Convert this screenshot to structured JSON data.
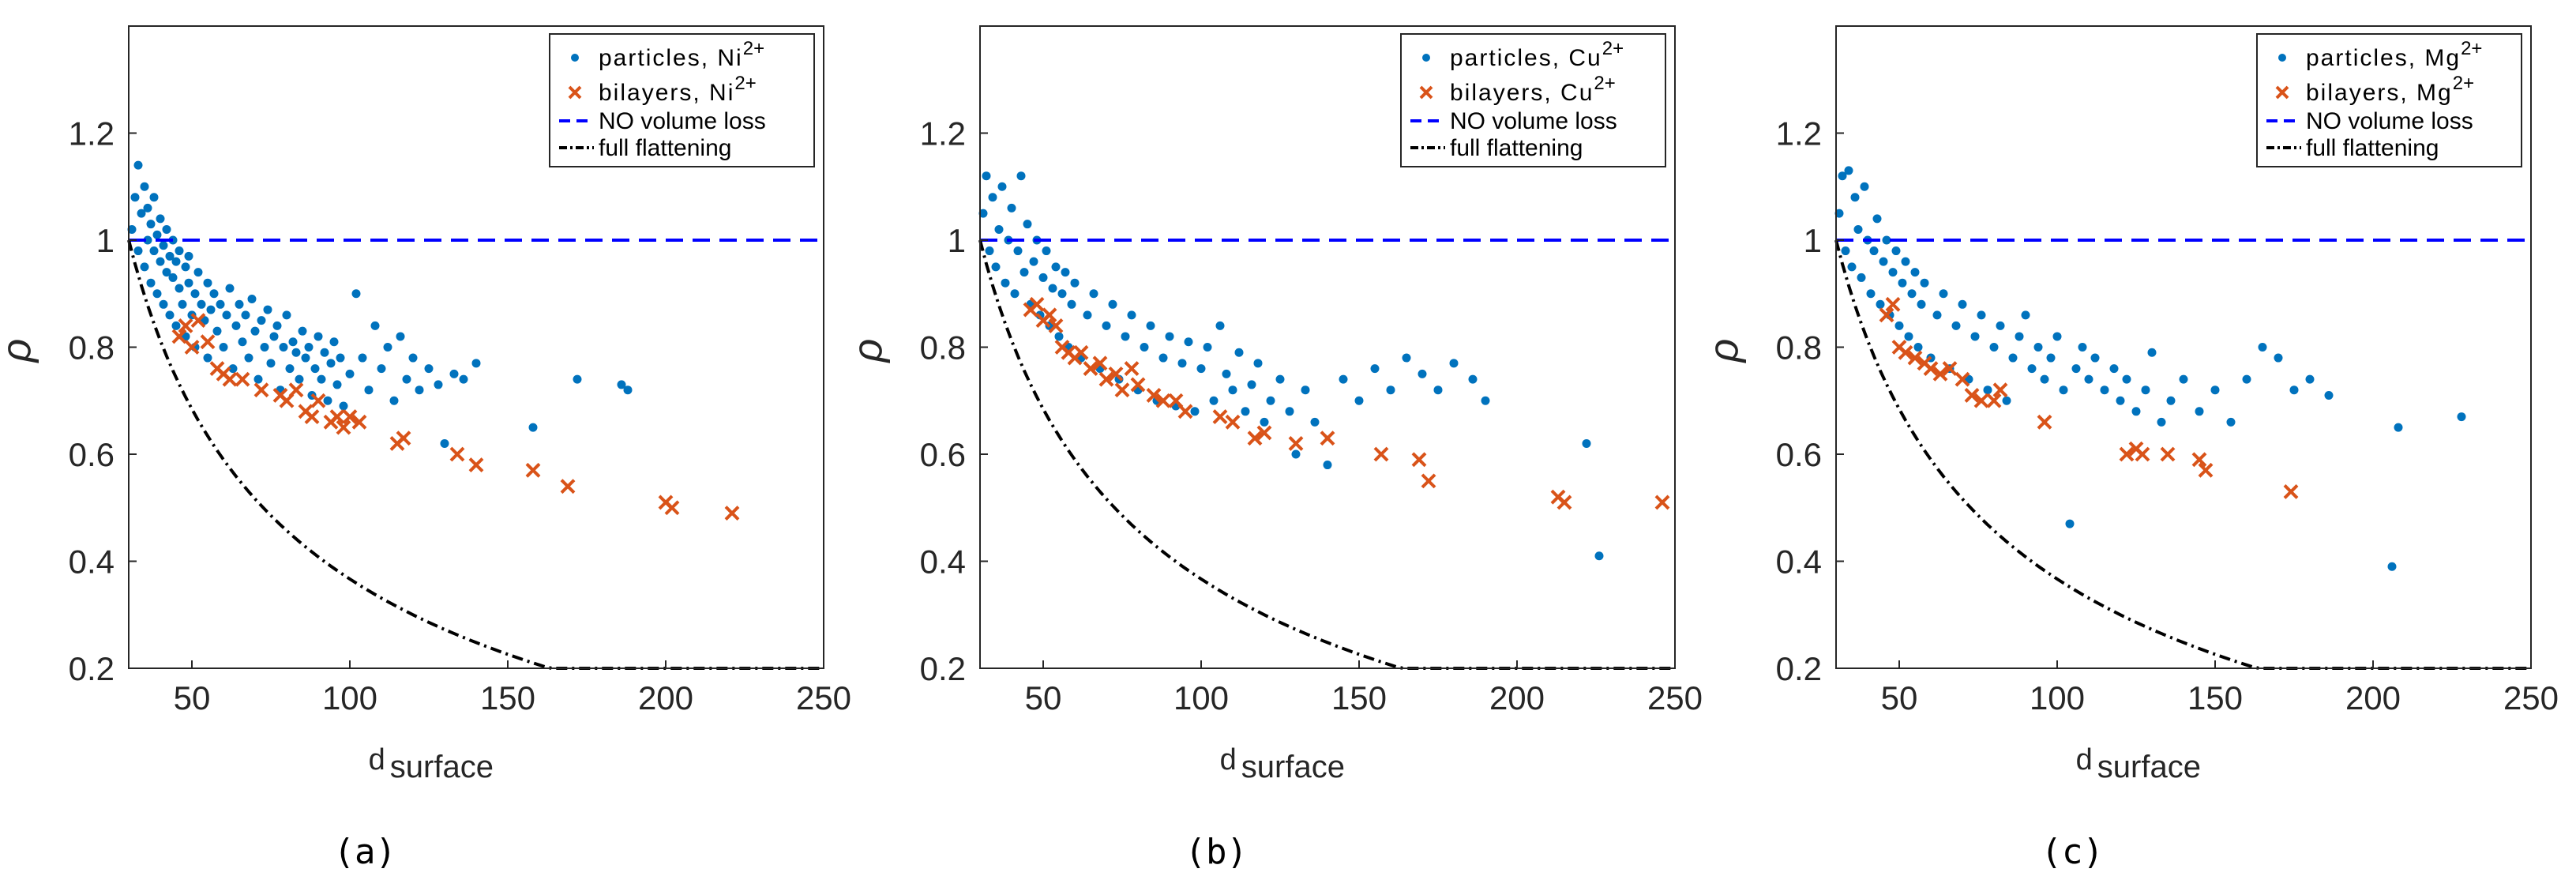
{
  "colors": {
    "particles": "#0072BD",
    "bilayers": "#D95319",
    "no_volume_loss": "#0000FF",
    "full_flattening": "#000000",
    "axis": "#262626"
  },
  "chart_data": [
    {
      "type": "scatter",
      "caption": "(a)",
      "xlabel_main": "d",
      "xlabel_sub": "surface",
      "ylabel": "ρ",
      "xlim": [
        30,
        250
      ],
      "ylim": [
        0.2,
        1.4
      ],
      "xticks": [
        50,
        100,
        150,
        200,
        250
      ],
      "yticks": [
        0.2,
        0.4,
        0.6,
        0.8,
        1,
        1.2
      ],
      "ytick_labels": [
        "0.2",
        "0.4",
        "0.6",
        "0.8",
        "1",
        "1.2"
      ],
      "legend": {
        "particles": {
          "text": "particles, Ni",
          "sup": "2+"
        },
        "bilayers": {
          "text": "bilayers, Ni",
          "sup": "2+"
        },
        "no_volume_loss": "NO volume loss",
        "full_flattening": "full flattening"
      },
      "reference_lines": {
        "no_volume_loss_y": 1.0,
        "full_flattening_coef": 1.4,
        "full_flattening_exp": -0.5,
        "full_flattening_offset": 0.39
      },
      "series": [
        {
          "name": "particles",
          "x": [
            31,
            32,
            33,
            33,
            34,
            35,
            35,
            36,
            36,
            37,
            37,
            38,
            38,
            39,
            39,
            40,
            40,
            41,
            41,
            42,
            42,
            43,
            43,
            44,
            44,
            45,
            45,
            46,
            46,
            47,
            48,
            48,
            49,
            49,
            50,
            51,
            51,
            52,
            53,
            54,
            55,
            55,
            56,
            57,
            58,
            59,
            60,
            61,
            62,
            63,
            64,
            65,
            66,
            67,
            68,
            69,
            70,
            71,
            72,
            73,
            74,
            75,
            76,
            77,
            78,
            79,
            80,
            81,
            82,
            83,
            84,
            85,
            86,
            87,
            88,
            89,
            90,
            91,
            92,
            93,
            94,
            95,
            96,
            97,
            98,
            100,
            102,
            104,
            106,
            108,
            110,
            112,
            114,
            116,
            118,
            120,
            122,
            125,
            128,
            130,
            133,
            136,
            140,
            158,
            172,
            186,
            188
          ],
          "y": [
            1.02,
            1.08,
            1.14,
            0.98,
            1.05,
            1.1,
            0.95,
            1.0,
            1.06,
            0.92,
            1.03,
            0.98,
            1.08,
            0.9,
            1.01,
            0.96,
            1.04,
            0.88,
            0.99,
            0.94,
            1.02,
            0.86,
            0.97,
            0.93,
            1.0,
            0.84,
            0.96,
            0.91,
            0.98,
            0.88,
            0.95,
            0.82,
            0.92,
            0.97,
            0.86,
            0.9,
            0.8,
            0.94,
            0.88,
            0.85,
            0.92,
            0.78,
            0.87,
            0.9,
            0.83,
            0.88,
            0.8,
            0.86,
            0.91,
            0.76,
            0.84,
            0.88,
            0.81,
            0.86,
            0.78,
            0.89,
            0.83,
            0.74,
            0.85,
            0.8,
            0.87,
            0.77,
            0.82,
            0.84,
            0.72,
            0.8,
            0.86,
            0.76,
            0.81,
            0.79,
            0.74,
            0.83,
            0.78,
            0.8,
            0.71,
            0.76,
            0.82,
            0.74,
            0.79,
            0.7,
            0.77,
            0.81,
            0.73,
            0.78,
            0.69,
            0.75,
            0.9,
            0.78,
            0.72,
            0.84,
            0.76,
            0.8,
            0.7,
            0.82,
            0.74,
            0.78,
            0.72,
            0.76,
            0.73,
            0.62,
            0.75,
            0.74,
            0.77,
            0.65,
            0.74,
            0.73,
            0.72
          ]
        },
        {
          "name": "bilayers",
          "x": [
            46,
            48,
            50,
            52,
            55,
            58,
            60,
            62,
            66,
            72,
            78,
            80,
            83,
            86,
            88,
            90,
            94,
            96,
            98,
            100,
            103,
            115,
            117,
            134,
            140,
            158,
            169,
            200,
            202,
            221
          ],
          "y": [
            0.82,
            0.84,
            0.8,
            0.85,
            0.81,
            0.76,
            0.75,
            0.74,
            0.74,
            0.72,
            0.71,
            0.7,
            0.72,
            0.68,
            0.67,
            0.7,
            0.66,
            0.67,
            0.65,
            0.67,
            0.66,
            0.62,
            0.63,
            0.6,
            0.58,
            0.57,
            0.54,
            0.51,
            0.5,
            0.49
          ]
        }
      ]
    },
    {
      "type": "scatter",
      "caption": "(b)",
      "xlabel_main": "d",
      "xlabel_sub": "surface",
      "ylabel": "ρ",
      "xlim": [
        30,
        250
      ],
      "ylim": [
        0.2,
        1.4
      ],
      "xticks": [
        50,
        100,
        150,
        200,
        250
      ],
      "yticks": [
        0.2,
        0.4,
        0.6,
        0.8,
        1,
        1.2
      ],
      "ytick_labels": [
        "0.2",
        "0.4",
        "0.6",
        "0.8",
        "1",
        "1.2"
      ],
      "legend": {
        "particles": {
          "text": "particles, Cu",
          "sup": "2+"
        },
        "bilayers": {
          "text": "bilayers, Cu",
          "sup": "2+"
        },
        "no_volume_loss": "NO volume loss",
        "full_flattening": "full flattening"
      },
      "reference_lines": {
        "no_volume_loss_y": 1.0,
        "full_flattening_coef": 1.4,
        "full_flattening_exp": -0.5,
        "full_flattening_offset": 0.39
      },
      "series": [
        {
          "name": "particles",
          "x": [
            31,
            32,
            33,
            34,
            35,
            36,
            37,
            38,
            39,
            40,
            41,
            42,
            43,
            44,
            45,
            46,
            47,
            48,
            49,
            50,
            51,
            52,
            53,
            54,
            55,
            56,
            57,
            58,
            59,
            60,
            62,
            64,
            66,
            68,
            70,
            72,
            74,
            76,
            78,
            80,
            82,
            84,
            86,
            88,
            90,
            92,
            94,
            96,
            98,
            100,
            102,
            104,
            106,
            108,
            110,
            112,
            114,
            116,
            118,
            120,
            122,
            125,
            128,
            130,
            133,
            136,
            140,
            145,
            150,
            155,
            160,
            165,
            170,
            175,
            180,
            186,
            190,
            222,
            226
          ],
          "y": [
            1.05,
            1.12,
            0.98,
            1.08,
            0.95,
            1.02,
            1.1,
            0.92,
            1.0,
            1.06,
            0.9,
            0.98,
            1.12,
            0.94,
            1.03,
            0.88,
            0.96,
            1.0,
            0.86,
            0.93,
            0.98,
            0.84,
            0.91,
            0.95,
            0.82,
            0.9,
            0.94,
            0.8,
            0.88,
            0.92,
            0.78,
            0.86,
            0.9,
            0.76,
            0.84,
            0.88,
            0.74,
            0.82,
            0.86,
            0.72,
            0.8,
            0.84,
            0.7,
            0.78,
            0.82,
            0.69,
            0.77,
            0.81,
            0.68,
            0.76,
            0.8,
            0.7,
            0.84,
            0.75,
            0.72,
            0.79,
            0.68,
            0.73,
            0.77,
            0.66,
            0.7,
            0.74,
            0.68,
            0.6,
            0.72,
            0.66,
            0.58,
            0.74,
            0.7,
            0.76,
            0.72,
            0.78,
            0.75,
            0.72,
            0.77,
            0.74,
            0.7,
            0.62,
            0.41
          ]
        },
        {
          "name": "bilayers",
          "x": [
            46,
            48,
            50,
            52,
            54,
            56,
            58,
            60,
            62,
            65,
            68,
            70,
            73,
            75,
            78,
            80,
            85,
            88,
            92,
            95,
            106,
            110,
            117,
            120,
            130,
            140,
            157,
            169,
            172,
            213,
            215,
            246
          ],
          "y": [
            0.87,
            0.88,
            0.85,
            0.86,
            0.84,
            0.8,
            0.79,
            0.78,
            0.79,
            0.76,
            0.77,
            0.74,
            0.75,
            0.72,
            0.76,
            0.73,
            0.71,
            0.7,
            0.7,
            0.68,
            0.67,
            0.66,
            0.63,
            0.64,
            0.62,
            0.63,
            0.6,
            0.59,
            0.55,
            0.52,
            0.51,
            0.51
          ]
        }
      ]
    },
    {
      "type": "scatter",
      "caption": "(c)",
      "xlabel_main": "d",
      "xlabel_sub": "surface",
      "ylabel": "ρ",
      "xlim": [
        30,
        250
      ],
      "ylim": [
        0.2,
        1.4
      ],
      "xticks": [
        50,
        100,
        150,
        200,
        250
      ],
      "yticks": [
        0.2,
        0.4,
        0.6,
        0.8,
        1,
        1.2
      ],
      "ytick_labels": [
        "0.2",
        "0.4",
        "0.6",
        "0.8",
        "1",
        "1.2"
      ],
      "legend": {
        "particles": {
          "text": "particles, Mg",
          "sup": "2+"
        },
        "bilayers": {
          "text": "bilayers, Mg",
          "sup": "2+"
        },
        "no_volume_loss": "NO volume loss",
        "full_flattening": "full flattening"
      },
      "reference_lines": {
        "no_volume_loss_y": 1.0,
        "full_flattening_coef": 1.4,
        "full_flattening_exp": -0.5,
        "full_flattening_offset": 0.39
      },
      "series": [
        {
          "name": "particles",
          "x": [
            31,
            32,
            33,
            34,
            35,
            36,
            37,
            38,
            39,
            40,
            41,
            42,
            43,
            44,
            45,
            46,
            47,
            48,
            49,
            50,
            51,
            52,
            53,
            54,
            55,
            56,
            57,
            58,
            60,
            62,
            64,
            66,
            68,
            70,
            72,
            74,
            76,
            78,
            80,
            82,
            84,
            86,
            88,
            90,
            92,
            94,
            96,
            98,
            100,
            102,
            104,
            106,
            108,
            110,
            112,
            115,
            118,
            120,
            122,
            125,
            128,
            130,
            133,
            136,
            140,
            145,
            150,
            155,
            160,
            165,
            170,
            175,
            180,
            186,
            206,
            208,
            228
          ],
          "y": [
            1.05,
            1.12,
            0.98,
            1.13,
            0.95,
            1.08,
            1.02,
            0.93,
            1.1,
            1.0,
            0.9,
            0.98,
            1.04,
            0.88,
            0.96,
            1.0,
            0.86,
            0.94,
            0.98,
            0.84,
            0.92,
            0.96,
            0.82,
            0.9,
            0.94,
            0.8,
            0.88,
            0.92,
            0.78,
            0.86,
            0.9,
            0.76,
            0.84,
            0.88,
            0.74,
            0.82,
            0.86,
            0.72,
            0.8,
            0.84,
            0.7,
            0.78,
            0.82,
            0.86,
            0.76,
            0.8,
            0.74,
            0.78,
            0.82,
            0.72,
            0.47,
            0.76,
            0.8,
            0.74,
            0.78,
            0.72,
            0.76,
            0.7,
            0.74,
            0.68,
            0.72,
            0.79,
            0.66,
            0.7,
            0.74,
            0.68,
            0.72,
            0.66,
            0.74,
            0.8,
            0.78,
            0.72,
            0.74,
            0.71,
            0.39,
            0.65,
            0.67
          ]
        },
        {
          "name": "bilayers",
          "x": [
            46,
            48,
            50,
            52,
            55,
            58,
            60,
            63,
            66,
            70,
            73,
            76,
            80,
            82,
            96,
            122,
            125,
            127,
            135,
            145,
            147,
            174
          ],
          "y": [
            0.86,
            0.88,
            0.8,
            0.79,
            0.78,
            0.77,
            0.76,
            0.75,
            0.76,
            0.74,
            0.71,
            0.7,
            0.7,
            0.72,
            0.66,
            0.6,
            0.61,
            0.6,
            0.6,
            0.59,
            0.57,
            0.53
          ]
        }
      ]
    }
  ]
}
